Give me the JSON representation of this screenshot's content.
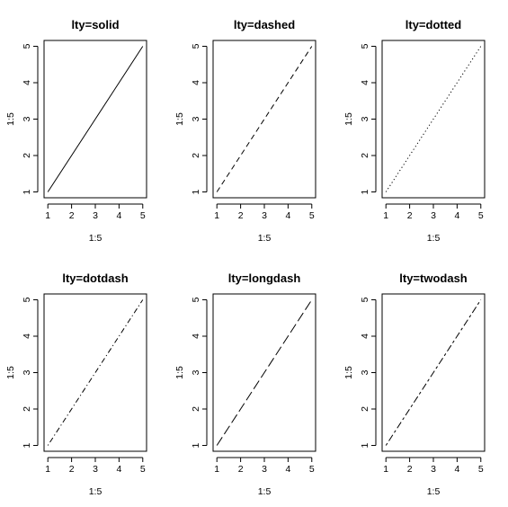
{
  "chart_data": [
    {
      "type": "line",
      "title": "lty=solid",
      "xlabel": "1:5",
      "ylabel": "1:5",
      "x": [
        1,
        2,
        3,
        4,
        5
      ],
      "y": [
        1,
        2,
        3,
        4,
        5
      ],
      "xlim": [
        1,
        5
      ],
      "ylim": [
        1,
        5
      ],
      "xticks": [
        "1",
        "2",
        "3",
        "4",
        "5"
      ],
      "yticks": [
        "1",
        "2",
        "3",
        "4",
        "5"
      ],
      "line_style": "solid",
      "dasharray": ""
    },
    {
      "type": "line",
      "title": "lty=dashed",
      "xlabel": "1:5",
      "ylabel": "1:5",
      "x": [
        1,
        2,
        3,
        4,
        5
      ],
      "y": [
        1,
        2,
        3,
        4,
        5
      ],
      "xlim": [
        1,
        5
      ],
      "ylim": [
        1,
        5
      ],
      "xticks": [
        "1",
        "2",
        "3",
        "4",
        "5"
      ],
      "yticks": [
        "1",
        "2",
        "3",
        "4",
        "5"
      ],
      "line_style": "dashed",
      "dasharray": "6 4"
    },
    {
      "type": "line",
      "title": "lty=dotted",
      "xlabel": "1:5",
      "ylabel": "1:5",
      "x": [
        1,
        2,
        3,
        4,
        5
      ],
      "y": [
        1,
        2,
        3,
        4,
        5
      ],
      "xlim": [
        1,
        5
      ],
      "ylim": [
        1,
        5
      ],
      "xticks": [
        "1",
        "2",
        "3",
        "4",
        "5"
      ],
      "yticks": [
        "1",
        "2",
        "3",
        "4",
        "5"
      ],
      "line_style": "dotted",
      "dasharray": "1.2 2.8"
    },
    {
      "type": "line",
      "title": "lty=dotdash",
      "xlabel": "1:5",
      "ylabel": "1:5",
      "x": [
        1,
        2,
        3,
        4,
        5
      ],
      "y": [
        1,
        2,
        3,
        4,
        5
      ],
      "xlim": [
        1,
        5
      ],
      "ylim": [
        1,
        5
      ],
      "xticks": [
        "1",
        "2",
        "3",
        "4",
        "5"
      ],
      "yticks": [
        "1",
        "2",
        "3",
        "4",
        "5"
      ],
      "line_style": "dotdash",
      "dasharray": "1.2 3 6 3"
    },
    {
      "type": "line",
      "title": "lty=longdash",
      "xlabel": "1:5",
      "ylabel": "1:5",
      "x": [
        1,
        2,
        3,
        4,
        5
      ],
      "y": [
        1,
        2,
        3,
        4,
        5
      ],
      "xlim": [
        1,
        5
      ],
      "ylim": [
        1,
        5
      ],
      "xticks": [
        "1",
        "2",
        "3",
        "4",
        "5"
      ],
      "yticks": [
        "1",
        "2",
        "3",
        "4",
        "5"
      ],
      "line_style": "longdash",
      "dasharray": "11 4"
    },
    {
      "type": "line",
      "title": "lty=twodash",
      "xlabel": "1:5",
      "ylabel": "1:5",
      "x": [
        1,
        2,
        3,
        4,
        5
      ],
      "y": [
        1,
        2,
        3,
        4,
        5
      ],
      "xlim": [
        1,
        5
      ],
      "ylim": [
        1,
        5
      ],
      "xticks": [
        "1",
        "2",
        "3",
        "4",
        "5"
      ],
      "yticks": [
        "1",
        "2",
        "3",
        "4",
        "5"
      ],
      "line_style": "twodash",
      "dasharray": "3 3 8 3"
    }
  ],
  "colors": {
    "line": "#000000",
    "axis": "#000000",
    "background": "#ffffff"
  }
}
